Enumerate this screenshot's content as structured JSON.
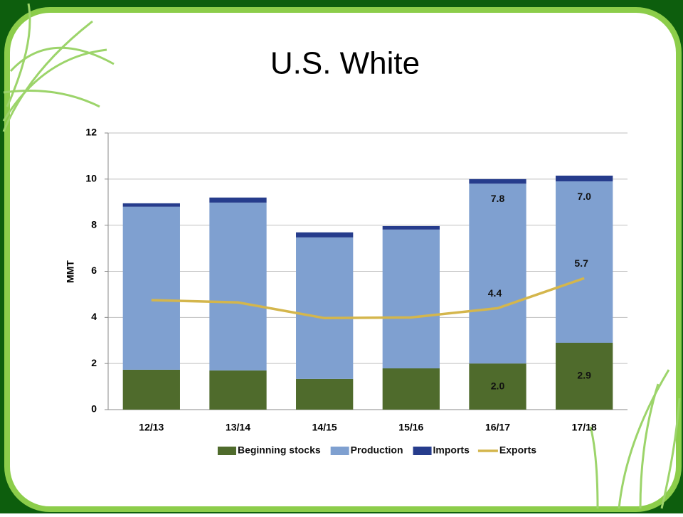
{
  "chart_data": {
    "type": "bar",
    "stacked": true,
    "title": "U.S. White",
    "y_label": "MMT",
    "categories": [
      "12/13",
      "13/14",
      "14/15",
      "15/16",
      "16/17",
      "17/18"
    ],
    "series": [
      {
        "name": "Beginning stocks",
        "color": "#4f6b2c",
        "values": [
          1.73,
          1.7,
          1.33,
          1.79,
          2.0,
          2.9
        ],
        "value_labels": [
          null,
          null,
          null,
          null,
          "2.0",
          "2.9"
        ]
      },
      {
        "name": "Production",
        "color": "#7fa0d0",
        "values": [
          7.07,
          7.28,
          6.14,
          6.02,
          7.8,
          7.0
        ],
        "value_labels": [
          null,
          null,
          null,
          null,
          "7.8",
          "7.0"
        ]
      },
      {
        "name": "Imports",
        "color": "#263c8c",
        "values": [
          0.15,
          0.22,
          0.22,
          0.15,
          0.2,
          0.25
        ]
      },
      {
        "name": "Exports",
        "type": "line",
        "color": "#d4b64c",
        "values": [
          4.75,
          4.65,
          3.97,
          4.0,
          4.4,
          5.7
        ],
        "value_labels": [
          null,
          null,
          null,
          null,
          "4.4",
          "5.7"
        ]
      }
    ],
    "ylim": [
      0,
      12
    ],
    "yticks": [
      0,
      2,
      4,
      6,
      8,
      10,
      12
    ],
    "grid": true,
    "legend": "bottom"
  }
}
